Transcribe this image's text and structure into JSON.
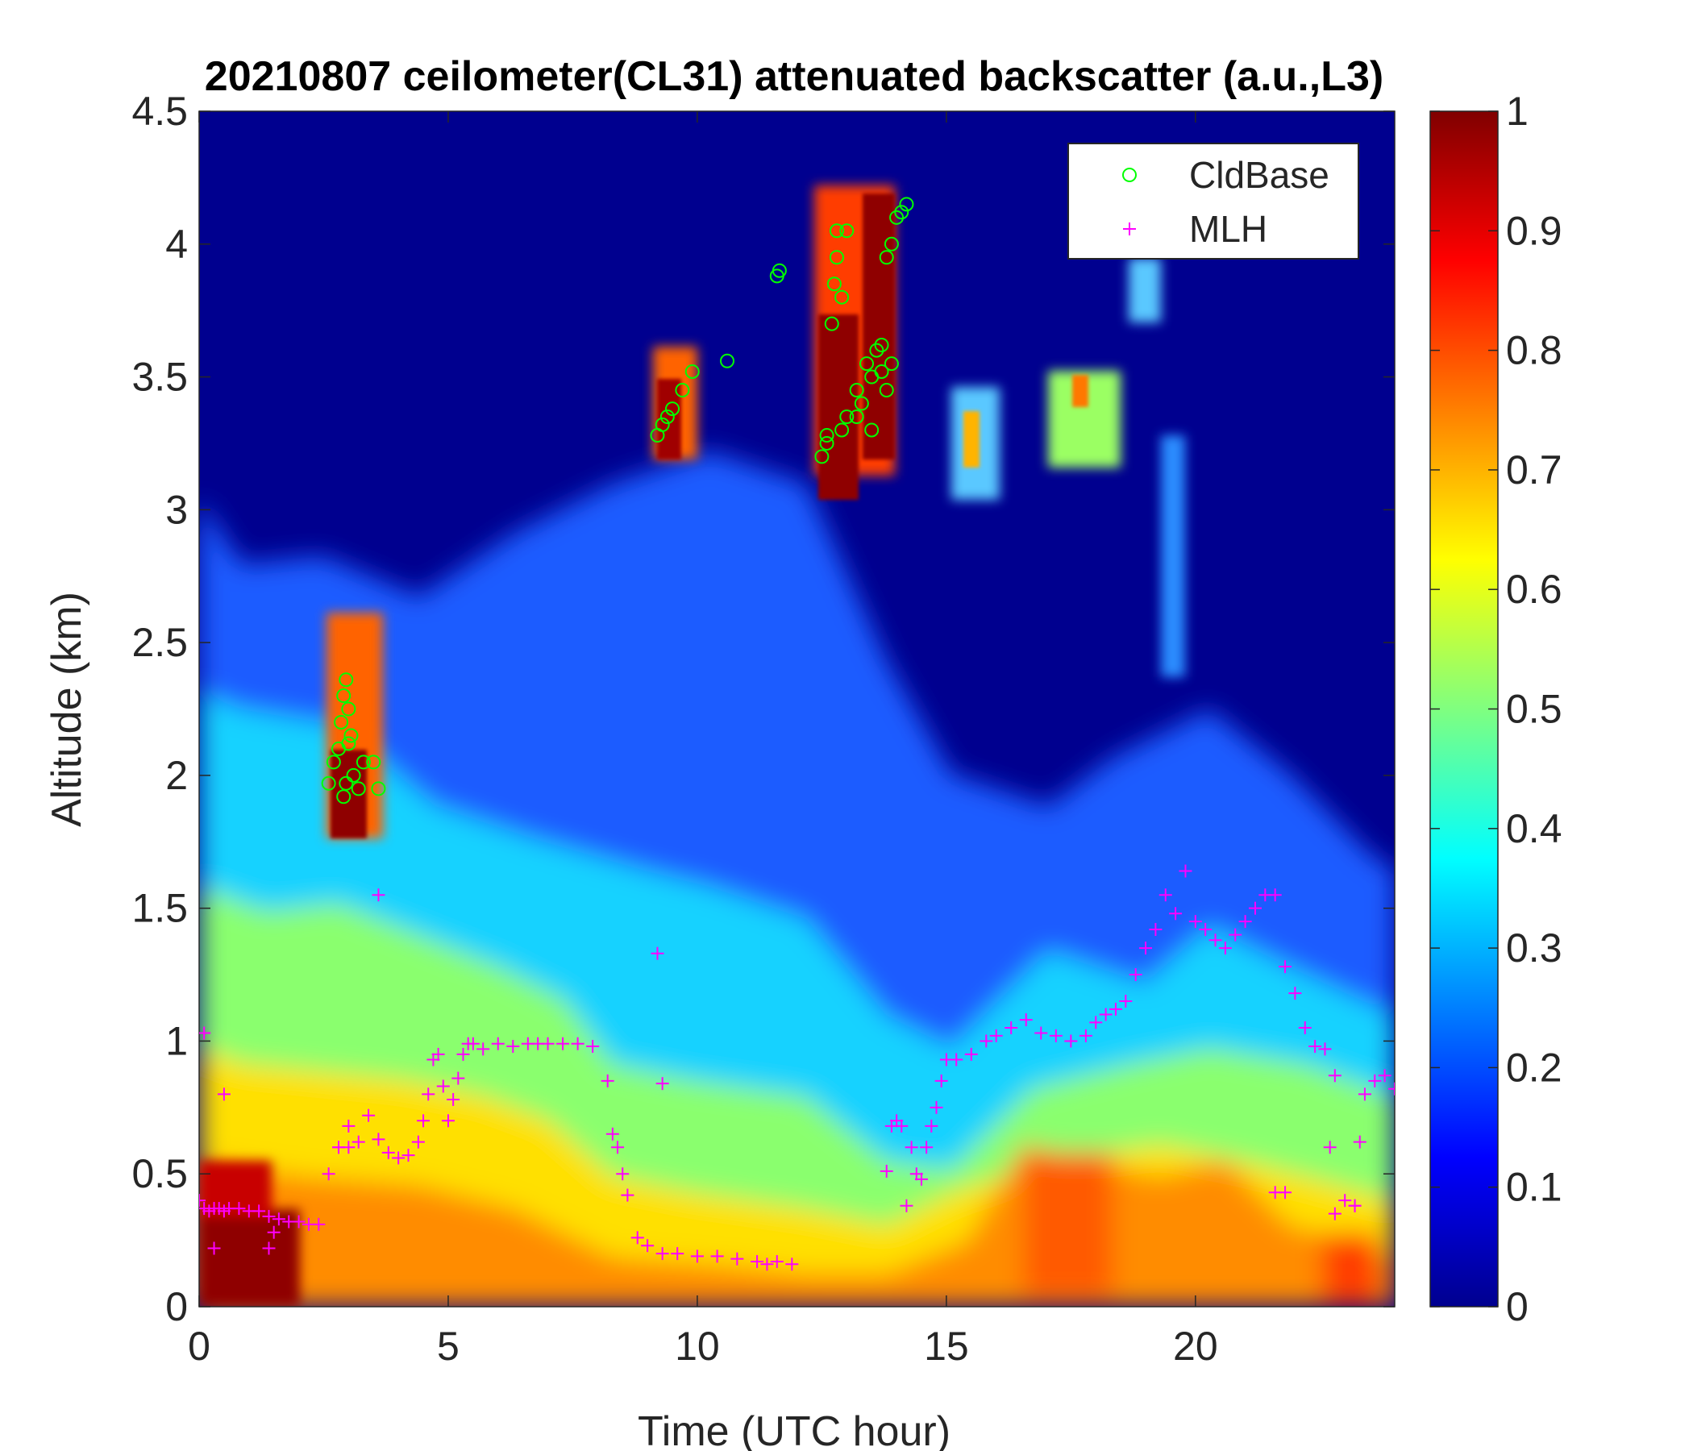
{
  "chart_data": {
    "type": "heatmap",
    "title": "20210807 ceilometer(CL31) attenuated backscatter (a.u.,L3)",
    "xlabel": "Time (UTC hour)",
    "ylabel": "Altitude (km)",
    "xlim": [
      0,
      24
    ],
    "ylim": [
      0,
      4.5
    ],
    "xticks": [
      0,
      5,
      10,
      15,
      20
    ],
    "yticks": [
      0,
      0.5,
      1,
      1.5,
      2,
      2.5,
      3,
      3.5,
      4,
      4.5
    ],
    "colorbar": {
      "colormap": "jet",
      "range": [
        0,
        1
      ],
      "ticks": [
        0,
        0.1,
        0.2,
        0.3,
        0.4,
        0.5,
        0.6,
        0.7,
        0.8,
        0.9,
        1
      ]
    },
    "legend": {
      "position": "top-right",
      "entries": [
        {
          "label": "CldBase",
          "marker": "circle",
          "color": "#00ff00"
        },
        {
          "label": "MLH",
          "marker": "plus",
          "color": "#ff00ff"
        }
      ]
    },
    "series": [
      {
        "name": "CldBase",
        "x": [
          2.6,
          2.7,
          2.8,
          2.85,
          2.9,
          2.95,
          3.0,
          3.05,
          3.1,
          3.2,
          3.3,
          3.5,
          3.6,
          2.9,
          3.0,
          2.95,
          9.2,
          9.3,
          9.4,
          9.5,
          9.7,
          9.9,
          10.6,
          11.6,
          11.65,
          12.5,
          12.6,
          12.7,
          12.75,
          12.8,
          12.9,
          13.0,
          13.2,
          13.4,
          13.6,
          13.7,
          13.8,
          13.9,
          14.0,
          14.1,
          14.2,
          12.8,
          13.0,
          13.3,
          13.5,
          13.7,
          13.9,
          13.2,
          13.5,
          13.8,
          12.6,
          12.9
        ],
        "y": [
          1.97,
          2.05,
          2.1,
          2.2,
          2.3,
          2.36,
          2.25,
          2.15,
          2.0,
          1.95,
          2.05,
          2.05,
          1.95,
          1.92,
          2.12,
          1.97,
          3.28,
          3.32,
          3.35,
          3.38,
          3.45,
          3.52,
          3.56,
          3.88,
          3.9,
          3.2,
          3.28,
          3.7,
          3.85,
          4.05,
          3.3,
          3.35,
          3.45,
          3.55,
          3.6,
          3.52,
          3.45,
          4.0,
          4.1,
          4.12,
          4.15,
          3.95,
          4.05,
          3.4,
          3.5,
          3.62,
          3.55,
          3.35,
          3.3,
          3.95,
          3.25,
          3.8
        ]
      },
      {
        "name": "MLH",
        "x": [
          0.0,
          0.1,
          0.2,
          0.3,
          0.4,
          0.5,
          0.6,
          0.8,
          1.0,
          1.2,
          1.4,
          1.5,
          1.6,
          1.8,
          2.0,
          2.2,
          2.4,
          2.6,
          2.8,
          3.0,
          3.2,
          3.4,
          3.6,
          3.8,
          4.0,
          4.2,
          4.4,
          4.5,
          4.6,
          4.7,
          4.8,
          4.9,
          5.0,
          5.1,
          5.2,
          5.3,
          5.4,
          5.5,
          5.7,
          6.0,
          6.3,
          6.6,
          6.8,
          7.0,
          7.3,
          7.6,
          7.9,
          8.2,
          8.3,
          8.4,
          8.5,
          8.6,
          8.8,
          9.0,
          9.3,
          9.6,
          10.0,
          10.4,
          10.8,
          11.2,
          11.6,
          11.9,
          13.9,
          14.0,
          14.1,
          14.3,
          14.5,
          14.6,
          14.7,
          14.8,
          14.9,
          15.0,
          15.2,
          15.5,
          15.8,
          16.0,
          16.3,
          16.6,
          16.9,
          17.2,
          17.5,
          17.8,
          18.0,
          18.2,
          18.4,
          18.6,
          18.8,
          19.0,
          19.2,
          19.4,
          19.6,
          19.8,
          20.0,
          20.2,
          20.4,
          20.6,
          20.8,
          21.0,
          21.2,
          21.4,
          21.6,
          21.8,
          22.0,
          22.2,
          22.4,
          22.6,
          22.8,
          23.0,
          23.2,
          23.4,
          23.6,
          23.8,
          24.0,
          9.2,
          9.3,
          3.6,
          0.1,
          0.5,
          0.3,
          1.4,
          2.8,
          3.0,
          11.4,
          22.7,
          22.8,
          23.2,
          23.3,
          21.6,
          21.8,
          13.8,
          14.2,
          14.4
        ],
        "y": [
          0.4,
          0.37,
          0.36,
          0.37,
          0.37,
          0.36,
          0.37,
          0.37,
          0.36,
          0.36,
          0.34,
          0.28,
          0.33,
          0.32,
          0.32,
          0.31,
          0.31,
          0.5,
          0.6,
          0.6,
          0.62,
          0.72,
          0.63,
          0.58,
          0.56,
          0.57,
          0.62,
          0.7,
          0.8,
          0.93,
          0.95,
          0.83,
          0.7,
          0.78,
          0.86,
          0.95,
          0.99,
          0.99,
          0.97,
          0.99,
          0.98,
          0.99,
          0.99,
          0.99,
          0.99,
          0.99,
          0.98,
          0.85,
          0.65,
          0.6,
          0.5,
          0.42,
          0.26,
          0.23,
          0.2,
          0.2,
          0.19,
          0.19,
          0.18,
          0.17,
          0.17,
          0.16,
          0.68,
          0.7,
          0.68,
          0.6,
          0.48,
          0.6,
          0.68,
          0.75,
          0.85,
          0.93,
          0.93,
          0.95,
          1.0,
          1.02,
          1.05,
          1.08,
          1.03,
          1.02,
          1.0,
          1.02,
          1.07,
          1.1,
          1.12,
          1.15,
          1.25,
          1.35,
          1.42,
          1.55,
          1.48,
          1.64,
          1.45,
          1.42,
          1.38,
          1.35,
          1.4,
          1.45,
          1.5,
          1.55,
          1.55,
          1.28,
          1.18,
          1.05,
          0.98,
          0.97,
          0.87,
          0.4,
          0.38,
          0.8,
          0.85,
          0.87,
          0.82,
          1.33,
          0.84,
          1.55,
          1.03,
          0.8,
          0.22,
          0.22,
          0.6,
          0.68,
          0.16,
          0.6,
          0.35,
          0.38,
          0.62,
          0.43,
          0.43,
          0.51,
          0.38,
          0.5
        ]
      }
    ]
  }
}
